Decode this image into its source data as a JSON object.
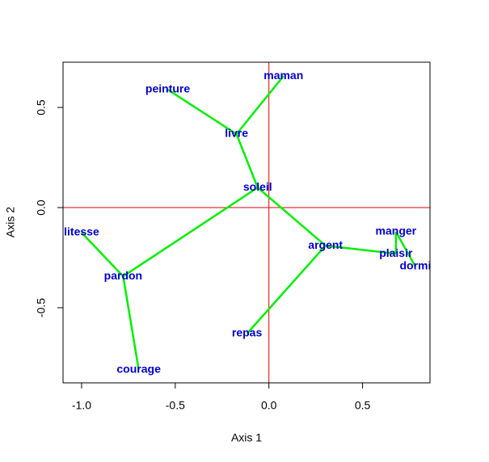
{
  "chart_data": {
    "type": "scatter",
    "xlabel": "Axis 1",
    "ylabel": "Axis 2",
    "xlim": [
      -1.099,
      0.86
    ],
    "ylim": [
      -0.875,
      0.726
    ],
    "xticks": [
      {
        "value": -1,
        "label": "-1.0"
      },
      -0.5,
      {
        "value": 0,
        "label": "0.0"
      },
      0.5
    ],
    "yticks": [
      -0.5,
      {
        "value": 0,
        "label": "0.0"
      },
      0.5
    ],
    "labels": [
      "maman",
      "peinture",
      "livre",
      "soleil",
      "litesse",
      "pardon",
      "courage",
      "argent",
      "manger",
      "plaisir",
      "dormi",
      "repas"
    ],
    "x": [
      0.078,
      -0.54,
      -0.173,
      -0.06,
      -1.0,
      -0.778,
      -0.695,
      0.302,
      0.678,
      0.678,
      0.782,
      -0.117
    ],
    "y": [
      0.657,
      0.589,
      0.367,
      0.1,
      -0.125,
      -0.343,
      -0.81,
      -0.19,
      -0.121,
      -0.23,
      -0.294,
      -0.629
    ],
    "label_color": "#0000cc",
    "edges": [
      [
        1,
        2
      ],
      [
        2,
        0
      ],
      [
        2,
        3
      ],
      [
        3,
        5
      ],
      [
        3,
        7
      ],
      [
        5,
        4
      ],
      [
        5,
        6
      ],
      [
        7,
        11
      ],
      [
        7,
        9
      ],
      [
        9,
        8
      ],
      [
        8,
        10
      ]
    ],
    "edge_color": "#00ee00",
    "reference_lines": {
      "h": 0,
      "v": 0,
      "color": "#dd0000"
    }
  }
}
